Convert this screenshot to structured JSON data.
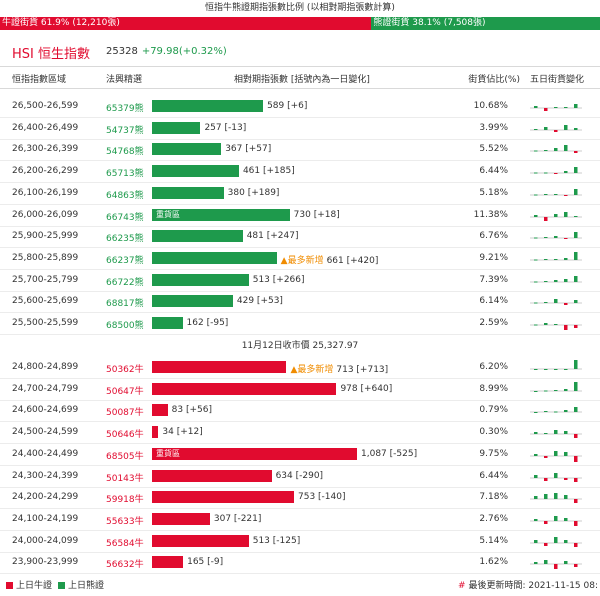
{
  "title": "恒指牛熊證期指張數比例 (以相對期指張數計算)",
  "ratio": {
    "bull_label": "牛證街貨 61.9% (12,210張)",
    "bull_fraction": 0.619,
    "bear_label": "熊證街貨 38.1% (7,508張)"
  },
  "hsi": {
    "label": "HSI 恒生指數",
    "value": "25328",
    "change": "+79.98(+0.32%)"
  },
  "header": {
    "range": "恒指指數區域",
    "code": "法興精選",
    "contracts": "相對期指張數 [括號內為一日變化]",
    "pct": "街貨佔比(%)",
    "trend": "五日街貨變化"
  },
  "bear_rows": [
    {
      "range": "26,500-26,599",
      "code": "65379熊",
      "count": 589,
      "text": "589 [+6]",
      "tag": "",
      "note": "",
      "pct": "10.68%",
      "spark": [
        0.2,
        -0.3,
        0.1,
        0.1,
        0.4
      ]
    },
    {
      "range": "26,400-26,499",
      "code": "54737熊",
      "count": 257,
      "text": "257 [-13]",
      "tag": "",
      "note": "",
      "pct": "3.99%",
      "spark": [
        0.1,
        0.3,
        -0.2,
        0.5,
        0.2
      ]
    },
    {
      "range": "26,300-26,399",
      "code": "54768熊",
      "count": 367,
      "text": "367 [+57]",
      "tag": "",
      "note": "",
      "pct": "5.52%",
      "spark": [
        0.05,
        0.1,
        0.3,
        0.6,
        -0.2
      ]
    },
    {
      "range": "26,200-26,299",
      "code": "65713熊",
      "count": 461,
      "text": "461 [+185]",
      "tag": "",
      "note": "",
      "pct": "6.44%",
      "spark": [
        0.05,
        0.05,
        -0.1,
        0.2,
        0.6
      ]
    },
    {
      "range": "26,100-26,199",
      "code": "64863熊",
      "count": 380,
      "text": "380 [+189]",
      "tag": "",
      "note": "",
      "pct": "5.18%",
      "spark": [
        0.05,
        0.1,
        0.1,
        -0.1,
        0.6
      ]
    },
    {
      "range": "26,000-26,099",
      "code": "66743熊",
      "count": 730,
      "text": "730 [+18]",
      "tag": "重貨區",
      "note": "",
      "pct": "11.38%",
      "spark": [
        0.2,
        -0.4,
        0.3,
        0.5,
        0.1
      ]
    },
    {
      "range": "25,900-25,999",
      "code": "66235熊",
      "count": 481,
      "text": "481 [+247]",
      "tag": "",
      "note": "",
      "pct": "6.76%",
      "spark": [
        0.05,
        0.1,
        0.2,
        -0.1,
        0.6
      ]
    },
    {
      "range": "25,800-25,899",
      "code": "66237熊",
      "count": 661,
      "text": "661 [+420]",
      "tag": "",
      "note": "▲最多新增",
      "pct": "9.21%",
      "spark": [
        0.05,
        0.1,
        0.1,
        0.2,
        0.8
      ]
    },
    {
      "range": "25,700-25,799",
      "code": "66722熊",
      "count": 513,
      "text": "513 [+266]",
      "tag": "",
      "note": "",
      "pct": "7.39%",
      "spark": [
        0.05,
        0.1,
        0.2,
        0.3,
        0.6
      ]
    },
    {
      "range": "25,600-25,699",
      "code": "68817熊",
      "count": 429,
      "text": "429 [+53]",
      "tag": "",
      "note": "",
      "pct": "6.14%",
      "spark": [
        0.05,
        0.1,
        0.4,
        -0.2,
        0.3
      ]
    },
    {
      "range": "25,500-25,599",
      "code": "68500熊",
      "count": 162,
      "text": "162 [-95]",
      "tag": "",
      "note": "",
      "pct": "2.59%",
      "spark": [
        0.05,
        0.2,
        0.1,
        -0.5,
        -0.3
      ]
    }
  ],
  "close_label": "11月12日收市價 25,327.97",
  "bull_rows": [
    {
      "range": "24,800-24,899",
      "code": "50362牛",
      "count": 713,
      "text": "713 [+713]",
      "tag": "",
      "note": "▲最多新增",
      "pct": "6.20%",
      "spark": [
        0,
        0,
        0,
        0,
        0.9
      ]
    },
    {
      "range": "24,700-24,799",
      "code": "50647牛",
      "count": 978,
      "text": "978 [+640]",
      "tag": "",
      "note": "",
      "pct": "8.99%",
      "spark": [
        0,
        0.05,
        0.1,
        0.2,
        0.9
      ]
    },
    {
      "range": "24,600-24,699",
      "code": "50087牛",
      "count": 83,
      "text": "83 [+56]",
      "tag": "",
      "note": "",
      "pct": "0.79%",
      "spark": [
        0,
        0.1,
        0.05,
        0.2,
        0.5
      ]
    },
    {
      "range": "24,500-24,599",
      "code": "50646牛",
      "count": 34,
      "text": "34 [+12]",
      "tag": "",
      "note": "",
      "pct": "0.30%",
      "spark": [
        0.2,
        0.1,
        0.4,
        0.3,
        -0.4
      ]
    },
    {
      "range": "24,400-24,499",
      "code": "68505牛",
      "count": 1087,
      "text": "1,087 [-525]",
      "tag": "重貨區",
      "note": "",
      "pct": "9.75%",
      "spark": [
        0.2,
        -0.2,
        0.5,
        0.4,
        -0.6
      ]
    },
    {
      "range": "24,300-24,399",
      "code": "50143牛",
      "count": 634,
      "text": "634 [-290]",
      "tag": "",
      "note": "",
      "pct": "6.44%",
      "spark": [
        0.3,
        -0.3,
        0.5,
        -0.2,
        -0.4
      ]
    },
    {
      "range": "24,200-24,299",
      "code": "59918牛",
      "count": 753,
      "text": "753 [-140]",
      "tag": "",
      "note": "",
      "pct": "7.18%",
      "spark": [
        0.3,
        0.5,
        0.6,
        0.4,
        -0.4
      ]
    },
    {
      "range": "24,100-24,199",
      "code": "55633牛",
      "count": 307,
      "text": "307 [-221]",
      "tag": "",
      "note": "",
      "pct": "2.76%",
      "spark": [
        0.2,
        -0.3,
        0.5,
        0.3,
        -0.5
      ]
    },
    {
      "range": "24,000-24,099",
      "code": "56584牛",
      "count": 513,
      "text": "513 [-125]",
      "tag": "",
      "note": "",
      "pct": "5.14%",
      "spark": [
        0.3,
        -0.3,
        0.6,
        0.3,
        -0.4
      ]
    },
    {
      "range": "23,900-23,999",
      "code": "56632牛",
      "count": 165,
      "text": "165 [-9]",
      "tag": "",
      "note": "",
      "pct": "1.62%",
      "spark": [
        0.2,
        0.4,
        -0.5,
        0.3,
        -0.3
      ]
    }
  ],
  "footer": {
    "legend_bull": "上日牛證",
    "legend_bear": "上日熊證",
    "updated_hash": "#",
    "updated": "最後更新時間: 2021-11-15 08:"
  },
  "colors": {
    "bull": "#e10b2f",
    "bear": "#1e9a4c",
    "note": "#f08c00"
  }
}
